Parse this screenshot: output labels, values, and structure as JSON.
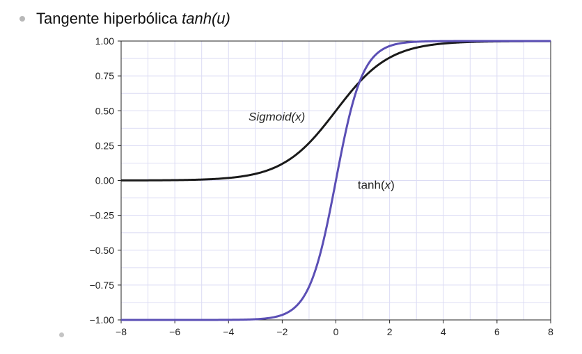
{
  "slide": {
    "bullet_title": "Tangente hiperbólica ",
    "bullet_title_italic": "tanh(u)"
  },
  "chart_data": {
    "type": "line",
    "title": "",
    "xlabel": "",
    "ylabel": "",
    "xlim": [
      -8,
      8
    ],
    "ylim": [
      -1.0,
      1.0
    ],
    "grid": true,
    "x_ticks": [
      -8,
      -6,
      -4,
      -2,
      0,
      2,
      4,
      6,
      8
    ],
    "x_tick_labels": [
      "−8",
      "−6",
      "−4",
      "−2",
      "0",
      "2",
      "4",
      "6",
      "8"
    ],
    "y_ticks": [
      -1.0,
      -0.75,
      -0.5,
      -0.25,
      0.0,
      0.25,
      0.5,
      0.75,
      1.0
    ],
    "y_tick_labels": [
      "−1.00",
      "−0.75",
      "−0.50",
      "−0.25",
      "0.00",
      "0.25",
      "0.50",
      "0.75",
      "1.00"
    ],
    "series": [
      {
        "name": "Sigmoid(x)",
        "color": "#1a1a1a",
        "function": "sigmoid",
        "x": [
          -8,
          -7,
          -6,
          -5,
          -4,
          -3,
          -2,
          -1,
          0,
          1,
          2,
          3,
          4,
          5,
          6,
          7,
          8
        ],
        "values": [
          0.0003,
          0.0009,
          0.0025,
          0.0067,
          0.018,
          0.047,
          0.119,
          0.269,
          0.5,
          0.731,
          0.881,
          0.953,
          0.982,
          0.993,
          0.998,
          0.999,
          1.0
        ]
      },
      {
        "name": "tanh(x)",
        "color": "#5b4fb5",
        "function": "tanh",
        "x": [
          -8,
          -7,
          -6,
          -5,
          -4,
          -3,
          -2,
          -1,
          0,
          1,
          2,
          3,
          4,
          5,
          6,
          7,
          8
        ],
        "values": [
          -1.0,
          -1.0,
          -1.0,
          -0.9999,
          -0.9993,
          -0.995,
          -0.964,
          -0.762,
          0.0,
          0.762,
          0.964,
          0.995,
          0.9993,
          0.9999,
          1.0,
          1.0,
          1.0
        ]
      }
    ],
    "annotations": [
      {
        "text": "Sigmoid(x)",
        "x": -2.2,
        "y": 0.43,
        "italic": true
      },
      {
        "text_main": "tanh(",
        "text_var": "x",
        "text_end": ")",
        "x": 1.5,
        "y": -0.06
      }
    ]
  }
}
